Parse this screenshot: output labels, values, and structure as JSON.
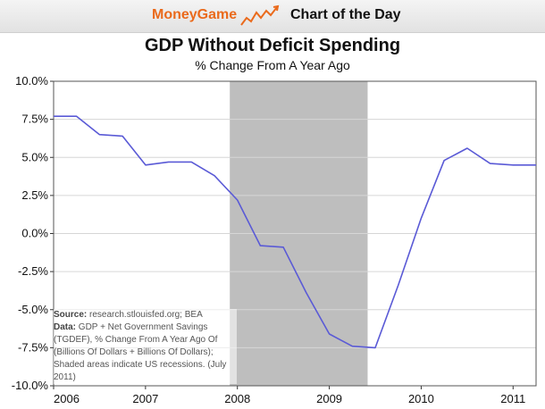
{
  "header": {
    "brand": "MoneyGame",
    "tagline": "Chart of the Day",
    "brand_color": "#ea6a1c"
  },
  "chart_data": {
    "type": "line",
    "title": "GDP Without Deficit Spending",
    "subtitle": "% Change From A Year Ago",
    "xlabel": "",
    "ylabel": "",
    "x_ticks": [
      "2006",
      "2007",
      "2008",
      "2009",
      "2010",
      "2011"
    ],
    "y_ticks": [
      "10.0%",
      "7.5%",
      "5.0%",
      "2.5%",
      "0.0%",
      "-2.5%",
      "-5.0%",
      "-7.5%",
      "-10.0%"
    ],
    "xlim": [
      2006,
      2011.25
    ],
    "ylim": [
      -10,
      10
    ],
    "grid": "horizontal",
    "line_color": "#5a5ad6",
    "recession_color": "#bebebe",
    "recessions": [
      [
        2007.917,
        2009.417
      ]
    ],
    "series": [
      {
        "x": [
          2006.0,
          2006.25,
          2006.5,
          2006.75,
          2007.0,
          2007.25,
          2007.5,
          2007.75,
          2008.0,
          2008.25,
          2008.5,
          2008.75,
          2009.0,
          2009.25,
          2009.5,
          2009.75,
          2010.0,
          2010.25,
          2010.5,
          2010.75,
          2011.0,
          2011.25
        ],
        "y": [
          7.7,
          7.7,
          6.5,
          6.4,
          4.5,
          4.7,
          4.7,
          3.8,
          2.2,
          -0.8,
          -0.9,
          -3.9,
          -6.6,
          -7.4,
          -7.5,
          -3.4,
          1.0,
          4.8,
          5.6,
          4.6,
          4.5,
          4.5
        ]
      }
    ],
    "annotation": {
      "source_label": "Source:",
      "source_text": "research.stlouisfed.org; BEA",
      "data_label": "Data:",
      "data_text": "GDP + Net Government Savings (TGDEF), % Change From A Year Ago Of (Billions Of Dollars + Billions Of Dollars); Shaded areas indicate US recessions. (July 2011)"
    }
  }
}
